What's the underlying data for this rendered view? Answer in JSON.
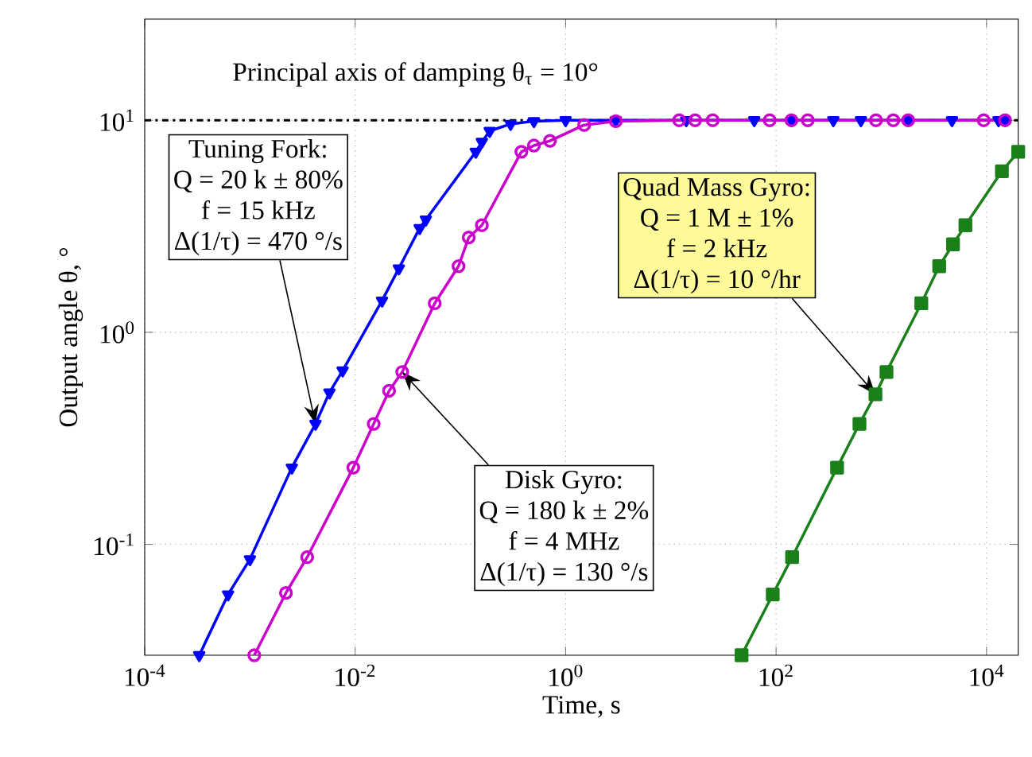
{
  "chart_data": {
    "type": "line",
    "xlabel": "Time, s",
    "ylabel": "Output angle θ, °",
    "log": "xy",
    "grid": true,
    "line_style": "solid",
    "xlim": [
      0.0001,
      20000
    ],
    "ylim": [
      0.03,
      30
    ],
    "xticks": [
      {
        "value": 0.0001,
        "label": "10$^{-4}$"
      },
      {
        "value": 0.01,
        "label": "10$^{-2}$"
      },
      {
        "value": 1,
        "label": "10$^{0}$"
      },
      {
        "value": 100,
        "label": "10$^{2}$"
      },
      {
        "value": 10000,
        "label": "10$^{4}$"
      }
    ],
    "yticks": [
      {
        "value": 0.1,
        "label": "10$^{-1}$"
      },
      {
        "value": 1,
        "label": "10$^{0}$"
      },
      {
        "value": 10,
        "label": "10$^{1}$"
      }
    ],
    "ref_lines": [
      {
        "axis": "y",
        "value": 10,
        "label": "Principal axis of damping θ$_{τ}$ = 10°",
        "color": "#000000",
        "line_style": "dashdot"
      }
    ],
    "series": [
      {
        "color": "#0000ff",
        "marker": "triangle",
        "x": [
          0.00033,
          0.00062,
          0.001,
          0.0025,
          0.0042,
          0.0057,
          0.0076,
          0.018,
          0.026,
          0.041,
          0.047,
          0.14,
          0.16,
          0.19,
          0.3,
          0.5,
          1,
          3,
          14,
          62,
          140,
          350,
          640,
          1800,
          4700,
          13000,
          15000
        ],
        "values": [
          0.03,
          0.058,
          0.085,
          0.23,
          0.37,
          0.52,
          0.66,
          1.41,
          2.0,
          3.1,
          3.4,
          7.1,
          7.9,
          8.9,
          9.6,
          9.9,
          10,
          10,
          10,
          10,
          10,
          10,
          10,
          10,
          10,
          10,
          10
        ]
      },
      {
        "color": "#cc00cc",
        "marker": "circle",
        "x": [
          0.0011,
          0.0022,
          0.0035,
          0.0096,
          0.015,
          0.021,
          0.028,
          0.057,
          0.096,
          0.12,
          0.16,
          0.38,
          0.5,
          0.71,
          1.5,
          3,
          12,
          17,
          25,
          87,
          140,
          200,
          890,
          1300,
          1800,
          9400,
          15000
        ],
        "values": [
          0.03,
          0.059,
          0.087,
          0.23,
          0.37,
          0.53,
          0.65,
          1.37,
          2.05,
          2.8,
          3.2,
          7.1,
          7.6,
          8.0,
          9.5,
          9.9,
          10,
          10,
          10,
          10,
          10,
          10,
          10,
          10,
          10,
          10,
          10
        ]
      },
      {
        "color": "#1a801a",
        "marker": "square",
        "x": [
          47,
          93,
          142,
          380,
          620,
          880,
          1120,
          2400,
          3550,
          4800,
          6300,
          14000,
          20000
        ],
        "values": [
          0.03,
          0.058,
          0.087,
          0.23,
          0.37,
          0.51,
          0.65,
          1.37,
          2.05,
          2.6,
          3.2,
          5.75,
          7.1
        ]
      }
    ],
    "annotations": [
      "Tuning Fork:",
      "Q = 20 k ± 80%",
      "f = 15 kHz",
      {
        "text": "Δ(1/τ) = 470 °/s",
        "x": 0.0042,
        "y": 0.37
      },
      {
        "text": "Disk Gyro:",
        "x": 0.028,
        "y": 0.65
      },
      "Q = 180 k ± 2%",
      "f = 4 MHz",
      "Δ(1/τ) = 130 °/s",
      "Quad Mass Gyro:",
      "Q = 1 M ± 1%",
      "f = 2 kHz",
      {
        "text": "Δ(1/τ) = 10 °/hr",
        "x": 880,
        "y": 0.51
      }
    ]
  }
}
